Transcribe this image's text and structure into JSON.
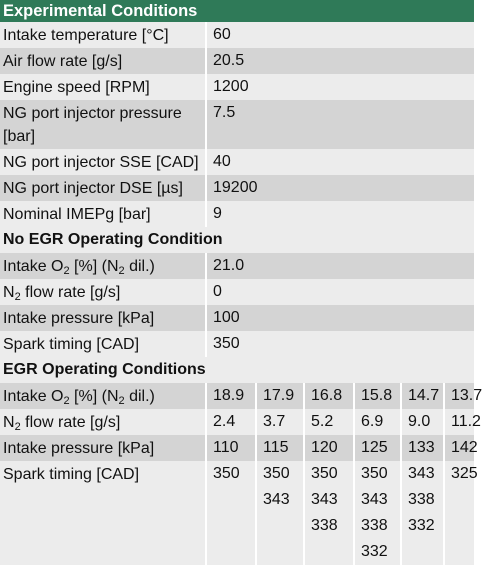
{
  "sections": [
    {
      "title": "Experimental Conditions",
      "rows": [
        {
          "label": [
            "Intake temperature [°C]"
          ],
          "value": "60"
        },
        {
          "label": [
            "Air flow rate [g/s]"
          ],
          "value": "20.5"
        },
        {
          "label": [
            "Engine speed [RPM]"
          ],
          "value": "1200"
        },
        {
          "label": [
            "NG port injector pressure [bar]"
          ],
          "value": "7.5"
        },
        {
          "label": [
            "NG port injector SSE [CAD]"
          ],
          "value": "40"
        },
        {
          "label": [
            "NG port injector DSE [µs]"
          ],
          "value": "19200"
        },
        {
          "label": [
            "Nominal IMEPg [bar]"
          ],
          "value": "9"
        }
      ]
    },
    {
      "title": "No EGR Operating Condition",
      "rows": [
        {
          "label": [
            "Intake O",
            "2",
            " [%] (N",
            "2",
            " dil.)"
          ],
          "value": "21.0"
        },
        {
          "label": [
            "N",
            "2",
            " flow rate [g/s]"
          ],
          "value": "0"
        },
        {
          "label": [
            "Intake pressure [kPa]"
          ],
          "value": "100"
        },
        {
          "label": [
            "Spark timing [CAD]"
          ],
          "value": "350"
        }
      ]
    },
    {
      "title": "EGR Operating Conditions",
      "rows": [
        {
          "label": [
            "Intake O",
            "2",
            " [%] (N",
            "2",
            " dil.)"
          ],
          "values": [
            [
              "18.9"
            ],
            [
              "17.9"
            ],
            [
              "16.8"
            ],
            [
              "15.8"
            ],
            [
              "14.7"
            ],
            [
              "13.7"
            ]
          ]
        },
        {
          "label": [
            "N",
            "2",
            " flow rate [g/s]"
          ],
          "values": [
            [
              "2.4"
            ],
            [
              "3.7"
            ],
            [
              "5.2"
            ],
            [
              "6.9"
            ],
            [
              "9.0"
            ],
            [
              "11.2"
            ]
          ]
        },
        {
          "label": [
            "Intake pressure [kPa]"
          ],
          "values": [
            [
              "110"
            ],
            [
              "115"
            ],
            [
              "120"
            ],
            [
              "125"
            ],
            [
              "133"
            ],
            [
              "142"
            ]
          ]
        },
        {
          "label": [
            "Spark timing [CAD]"
          ],
          "values": [
            [
              "350"
            ],
            [
              "350",
              "343"
            ],
            [
              "350",
              "343",
              "338"
            ],
            [
              "350",
              "343",
              "338",
              "332"
            ],
            [
              "343",
              "338",
              "332"
            ],
            [
              "325"
            ]
          ]
        }
      ]
    }
  ]
}
